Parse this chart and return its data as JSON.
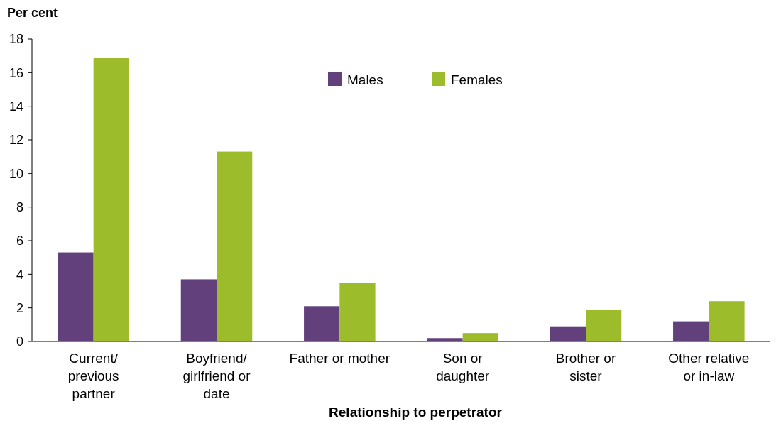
{
  "chart_data": {
    "type": "bar",
    "ylabel": "Per cent",
    "xlabel": "Relationship to perpetrator",
    "categories": [
      "Current/\nprevious\npartner",
      "Boyfriend/\ngirlfriend or\ndate",
      "Father or mother",
      "Son or\ndaughter",
      "Brother or\nsister",
      "Other relative\nor in-law"
    ],
    "series": [
      {
        "name": "Males",
        "color": "#61407b",
        "values": [
          5.3,
          3.7,
          2.1,
          0.2,
          0.9,
          1.2
        ]
      },
      {
        "name": "Females",
        "color": "#9cbc2c",
        "values": [
          16.9,
          11.3,
          3.5,
          0.5,
          1.9,
          2.4
        ]
      }
    ],
    "ylim": [
      0,
      18
    ],
    "yticks": [
      0,
      2,
      4,
      6,
      8,
      10,
      12,
      14,
      16,
      18
    ],
    "grid": false,
    "legend": "top"
  }
}
